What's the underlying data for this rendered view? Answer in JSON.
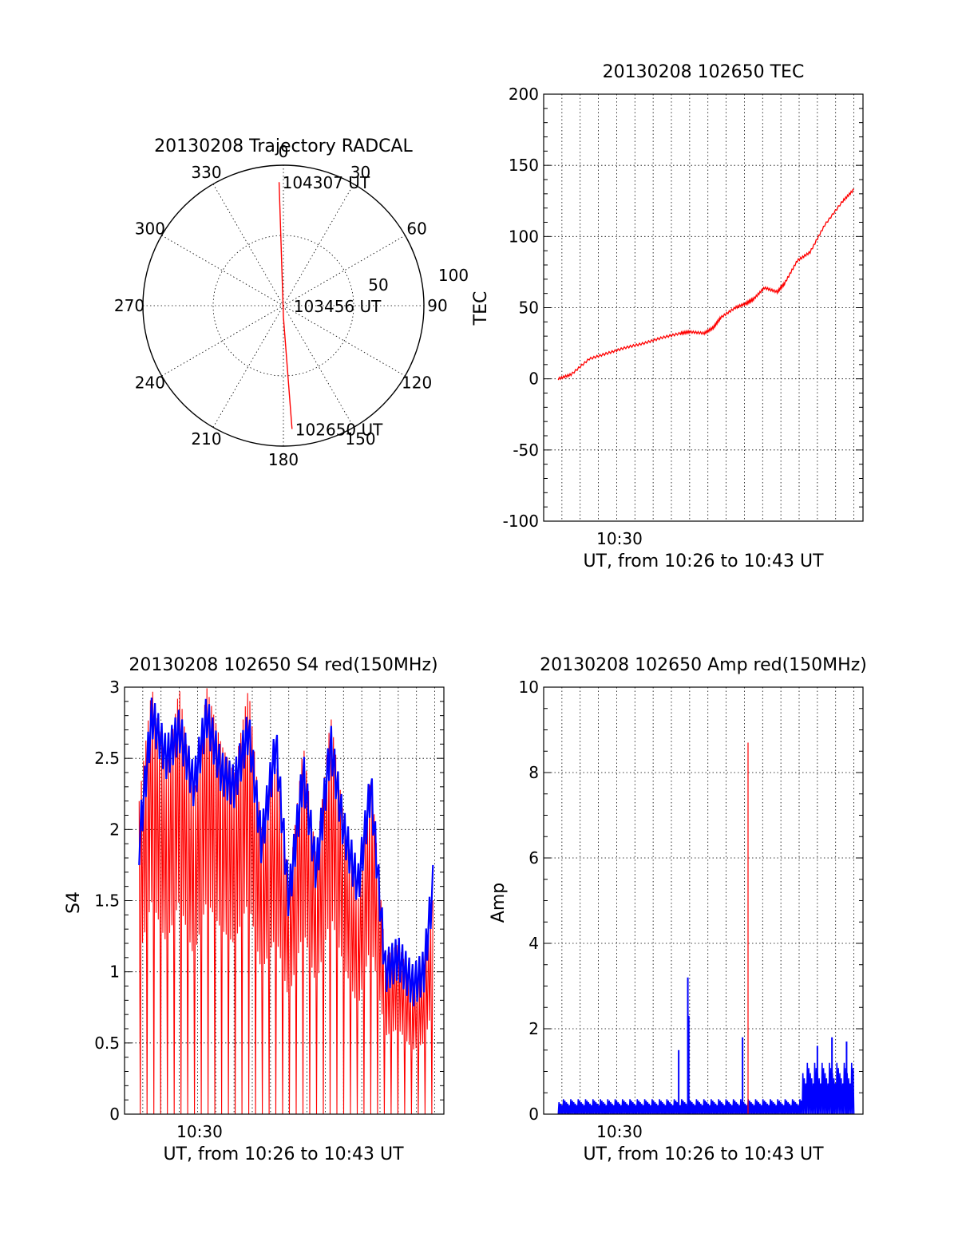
{
  "colors": {
    "red": "#ff0000",
    "blue": "#0000ff",
    "axis": "#000000"
  },
  "chart_data": [
    {
      "id": "trajectory",
      "type": "polar",
      "title": "20130208 Trajectory RADCAL",
      "angle_ticks": [
        "0",
        "30",
        "60",
        "90",
        "120",
        "150",
        "180",
        "210",
        "240",
        "270",
        "300",
        "330"
      ],
      "radial_ticks": [
        "50",
        "100"
      ],
      "rmax": 100,
      "trajectory": {
        "series_color": "red",
        "points": [
          {
            "azimuth": 358,
            "range": 88
          },
          {
            "azimuth": 180,
            "range": 8
          },
          {
            "azimuth": 176,
            "range": 88
          }
        ]
      },
      "annotations": [
        {
          "text": "104307 UT",
          "azimuth": 358,
          "range": 88
        },
        {
          "text": "103456 UT",
          "azimuth": 90,
          "range": 5
        },
        {
          "text": "102650 UT",
          "azimuth": 176,
          "range": 88
        }
      ]
    },
    {
      "id": "tec",
      "type": "line",
      "title": "20130208 102650 TEC",
      "xlabel": "UT, from 10:26 to 10:43 UT",
      "ylabel": "TEC",
      "x_tick_label": "10:30",
      "yticks": [
        "200",
        "150",
        "100",
        "50",
        "0",
        "-50",
        "-100"
      ],
      "ylim": [
        -100,
        200
      ],
      "x_minutes": [
        26.8,
        27.5,
        28.5,
        29.5,
        30.5,
        31.5,
        32.5,
        33.5,
        34.0,
        34.8,
        35.3,
        35.7,
        36.5,
        37.1,
        37.5,
        38.1,
        38.8,
        39.2,
        39.9,
        40.6,
        41.4,
        42.4,
        43.0
      ],
      "series": [
        {
          "color": "red",
          "values": [
            0,
            3,
            14,
            18,
            22,
            25,
            29,
            32,
            33,
            32,
            36,
            43,
            50,
            53,
            56,
            64,
            61,
            67,
            83,
            89,
            108,
            125,
            133
          ]
        }
      ]
    },
    {
      "id": "s4",
      "type": "line",
      "title": "20130208 102650 S4 red(150MHz)",
      "xlabel": "UT, from 10:26 to 10:43 UT",
      "ylabel": "S4",
      "x_tick_label": "10:30",
      "yticks": [
        "3",
        "2.5",
        "2",
        "1.5",
        "1",
        "0.5",
        "0"
      ],
      "ylim": [
        0,
        3
      ],
      "x_minutes": [
        26.8,
        27.5,
        28.3,
        29.0,
        29.8,
        30.5,
        31.3,
        32.0,
        32.8,
        33.5,
        34.3,
        35.0,
        35.8,
        36.5,
        37.3,
        38.0,
        38.8,
        39.5,
        40.3,
        41.0,
        41.8,
        42.4,
        42.9
      ],
      "series": [
        {
          "color": "red",
          "values": [
            2.2,
            3,
            2.4,
            3,
            2.2,
            3,
            2.6,
            2.4,
            3,
            2.0,
            2.5,
            1.6,
            2.6,
            1.8,
            2.8,
            2.1,
            1.5,
            2.4,
            1.1,
            1.2,
            0.9,
            1.0,
            1.5
          ]
        },
        {
          "color": "blue",
          "values": [
            1.9,
            2.8,
            2.5,
            2.7,
            2.3,
            2.8,
            2.4,
            2.3,
            2.7,
            1.9,
            2.6,
            1.5,
            2.4,
            1.7,
            2.6,
            2.0,
            1.6,
            2.3,
            1.0,
            1.1,
            0.9,
            1.0,
            1.6
          ]
        }
      ]
    },
    {
      "id": "amp",
      "type": "line",
      "title": "20130208 102650 Amp red(150MHz)",
      "xlabel": "UT, from 10:26 to 10:43 UT",
      "ylabel": "Amp",
      "x_tick_label": "10:30",
      "yticks": [
        "10",
        "8",
        "6",
        "4",
        "2",
        "0"
      ],
      "ylim": [
        0,
        10
      ],
      "baseline_blue": 0.35,
      "spikes": [
        {
          "x_minute": 33.4,
          "value": 1.5,
          "color": "blue"
        },
        {
          "x_minute": 33.9,
          "value": 3.2,
          "color": "blue"
        },
        {
          "x_minute": 33.95,
          "value": 2.3,
          "color": "blue"
        },
        {
          "x_minute": 36.9,
          "value": 1.8,
          "color": "blue"
        },
        {
          "x_minute": 37.2,
          "value": 8.7,
          "color": "red"
        },
        {
          "x_minute": 41.0,
          "value": 1.6,
          "color": "blue"
        },
        {
          "x_minute": 41.8,
          "value": 1.8,
          "color": "blue"
        },
        {
          "x_minute": 42.6,
          "value": 1.7,
          "color": "blue"
        }
      ],
      "elevated_segment": {
        "from_minute": 40.2,
        "to_minute": 43.0,
        "value": 1.2
      }
    }
  ]
}
